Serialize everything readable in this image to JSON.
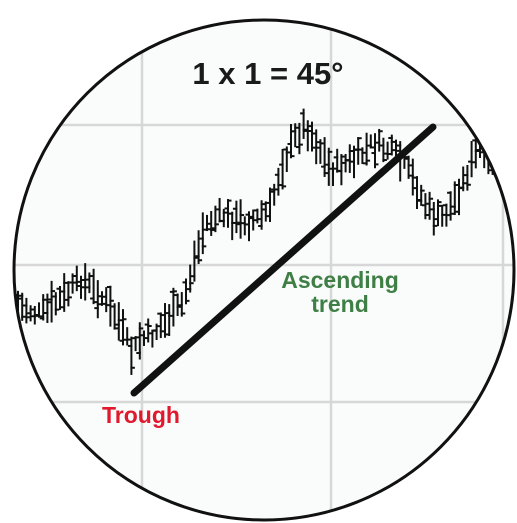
{
  "title": "1 x 1 = 45°",
  "annotations": {
    "trough": "Trough",
    "trend_line_1": "Ascending",
    "trend_line_2": "trend"
  },
  "colors": {
    "background": "#ffffff",
    "circle_fill": "#f9fcfb",
    "circle_border": "#111111",
    "grid": "#d7d7d7",
    "bars": "#111111",
    "trend_line": "#111111",
    "title_text": "#1a1a1a",
    "trough_text": "#e0192f",
    "trend_text": "#3f7f46"
  }
}
